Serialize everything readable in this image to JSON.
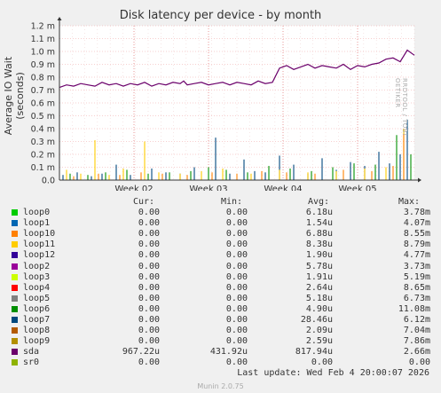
{
  "title": "Disk latency per device - by month",
  "vendor_text": "RRDTOOL / TOBI OETIKER",
  "footer": "Last update: Wed Feb  4 20:00:07 2026",
  "version": "Munin 2.0.75",
  "legend_headers": {
    "cur": "Cur:",
    "min": "Min:",
    "avg": "Avg:",
    "max": "Max:"
  },
  "legend": [
    {
      "name": "loop0",
      "color": "#00cc00",
      "cur": "0.00",
      "min": "0.00",
      "avg": "6.18u",
      "max": "3.78m"
    },
    {
      "name": "loop1",
      "color": "#0066b3",
      "cur": "0.00",
      "min": "0.00",
      "avg": "1.54u",
      "max": "4.07m"
    },
    {
      "name": "loop10",
      "color": "#ff8000",
      "cur": "0.00",
      "min": "0.00",
      "avg": "6.88u",
      "max": "8.55m"
    },
    {
      "name": "loop11",
      "color": "#ffcc00",
      "cur": "0.00",
      "min": "0.00",
      "avg": "8.38u",
      "max": "8.79m"
    },
    {
      "name": "loop12",
      "color": "#330099",
      "cur": "0.00",
      "min": "0.00",
      "avg": "1.90u",
      "max": "4.77m"
    },
    {
      "name": "loop2",
      "color": "#990099",
      "cur": "0.00",
      "min": "0.00",
      "avg": "5.78u",
      "max": "3.73m"
    },
    {
      "name": "loop3",
      "color": "#ccff00",
      "cur": "0.00",
      "min": "0.00",
      "avg": "1.91u",
      "max": "5.19m"
    },
    {
      "name": "loop4",
      "color": "#ff0000",
      "cur": "0.00",
      "min": "0.00",
      "avg": "2.64u",
      "max": "8.65m"
    },
    {
      "name": "loop5",
      "color": "#808080",
      "cur": "0.00",
      "min": "0.00",
      "avg": "5.18u",
      "max": "6.73m"
    },
    {
      "name": "loop6",
      "color": "#008f00",
      "cur": "0.00",
      "min": "0.00",
      "avg": "4.90u",
      "max": "11.08m"
    },
    {
      "name": "loop7",
      "color": "#00487d",
      "cur": "0.00",
      "min": "0.00",
      "avg": "28.46u",
      "max": "6.12m"
    },
    {
      "name": "loop8",
      "color": "#b35a00",
      "cur": "0.00",
      "min": "0.00",
      "avg": "2.09u",
      "max": "7.04m"
    },
    {
      "name": "loop9",
      "color": "#b38f00",
      "cur": "0.00",
      "min": "0.00",
      "avg": "2.59u",
      "max": "7.86m"
    },
    {
      "name": "sda",
      "color": "#6b006b",
      "cur": "967.22u",
      "min": "431.92u",
      "avg": "817.94u",
      "max": "2.66m"
    },
    {
      "name": "sr0",
      "color": "#8fb300",
      "cur": "0.00",
      "min": "0.00",
      "avg": "0.00",
      "max": "0.00"
    }
  ],
  "chart_data": {
    "type": "line",
    "title": "Disk latency per device - by month",
    "ylabel": "Average IO Wait (seconds)",
    "ylim": [
      0,
      0.0012
    ],
    "y_ticks": [
      {
        "v": 0,
        "label": "0.0"
      },
      {
        "v": 0.0001,
        "label": "0.1 m"
      },
      {
        "v": 0.0002,
        "label": "0.2 m"
      },
      {
        "v": 0.0003,
        "label": "0.3 m"
      },
      {
        "v": 0.0004,
        "label": "0.4 m"
      },
      {
        "v": 0.0005,
        "label": "0.5 m"
      },
      {
        "v": 0.0006,
        "label": "0.6 m"
      },
      {
        "v": 0.0007,
        "label": "0.7 m"
      },
      {
        "v": 0.0008,
        "label": "0.8 m"
      },
      {
        "v": 0.0009,
        "label": "0.9 m"
      },
      {
        "v": 0.001,
        "label": "1.0 m"
      },
      {
        "v": 0.0011,
        "label": "1.1 m"
      },
      {
        "v": 0.0012,
        "label": "1.2 m"
      }
    ],
    "x_ticks": [
      "Week 02",
      "Week 03",
      "Week 04",
      "Week 05"
    ],
    "grid": true,
    "series": [
      {
        "name": "sda",
        "color": "#6b006b",
        "x": [
          0,
          2,
          4,
          6,
          8,
          10,
          12,
          14,
          16,
          18,
          20,
          22,
          24,
          26,
          28,
          30,
          32,
          34,
          35,
          36,
          38,
          40,
          42,
          44,
          46,
          48,
          50,
          52,
          54,
          56,
          58,
          60,
          62,
          64,
          66,
          68,
          70,
          72,
          74,
          76,
          78,
          80,
          82,
          84,
          86,
          88,
          90,
          92,
          94,
          96,
          98,
          100
        ],
        "y": [
          0.00072,
          0.00074,
          0.00073,
          0.00075,
          0.00074,
          0.00073,
          0.00076,
          0.00074,
          0.00075,
          0.00073,
          0.00075,
          0.00074,
          0.00076,
          0.00073,
          0.00075,
          0.00074,
          0.00076,
          0.00075,
          0.00077,
          0.00074,
          0.00075,
          0.00076,
          0.00074,
          0.00075,
          0.00076,
          0.00074,
          0.00076,
          0.00075,
          0.00074,
          0.00077,
          0.00075,
          0.00076,
          0.00087,
          0.00089,
          0.00086,
          0.00088,
          0.0009,
          0.00087,
          0.00089,
          0.00088,
          0.00087,
          0.0009,
          0.00086,
          0.00089,
          0.00088,
          0.0009,
          0.00091,
          0.00094,
          0.00095,
          0.00092,
          0.00101,
          0.00097
        ]
      },
      {
        "name": "loop7",
        "color": "#00487d",
        "x": [
          1,
          5,
          9,
          12,
          16,
          20,
          26,
          30,
          34,
          38,
          44,
          48,
          52,
          55,
          58,
          62,
          66,
          70,
          74,
          78,
          82,
          86,
          90,
          93,
          96,
          98
        ],
        "y": [
          4e-05,
          6e-05,
          3e-05,
          5e-05,
          0.00012,
          4e-05,
          9e-05,
          6e-05,
          5e-05,
          0.0001,
          0.00033,
          5e-05,
          0.00016,
          7e-05,
          6e-05,
          0.00019,
          0.00012,
          5e-05,
          0.00017,
          8e-05,
          0.00014,
          0.00011,
          0.00022,
          0.00013,
          0.0002,
          0.00047
        ]
      },
      {
        "name": "loop11",
        "color": "#ffcc00",
        "x": [
          2,
          6,
          10,
          14,
          18,
          24,
          28,
          34,
          40,
          46,
          54,
          62,
          70,
          78,
          86,
          92,
          97
        ],
        "y": [
          8e-05,
          5e-05,
          0.00031,
          4e-05,
          9e-05,
          0.0003,
          6e-05,
          5e-05,
          7e-05,
          9e-05,
          5e-05,
          8e-05,
          6e-05,
          7e-05,
          9e-05,
          0.0001,
          0.0004
        ]
      },
      {
        "name": "loop6",
        "color": "#008f00",
        "x": [
          3,
          8,
          13,
          19,
          25,
          31,
          37,
          42,
          47,
          53,
          59,
          65,
          71,
          77,
          83,
          89,
          95,
          99
        ],
        "y": [
          5e-05,
          4e-05,
          6e-05,
          8e-05,
          5e-05,
          6e-05,
          7e-05,
          0.0001,
          8e-05,
          6e-05,
          0.00011,
          9e-05,
          7e-05,
          0.0001,
          0.00013,
          0.00012,
          0.00035,
          0.0002
        ]
      },
      {
        "name": "loop10",
        "color": "#ff8000",
        "x": [
          4,
          11,
          17,
          23,
          29,
          36,
          43,
          50,
          57,
          64,
          72,
          80,
          88,
          94,
          97
        ],
        "y": [
          3e-05,
          5e-05,
          4e-05,
          6e-05,
          5e-05,
          4e-05,
          6e-05,
          5e-05,
          7e-05,
          6e-05,
          5e-05,
          8e-05,
          7e-05,
          0.00011,
          0.00036
        ]
      }
    ]
  }
}
